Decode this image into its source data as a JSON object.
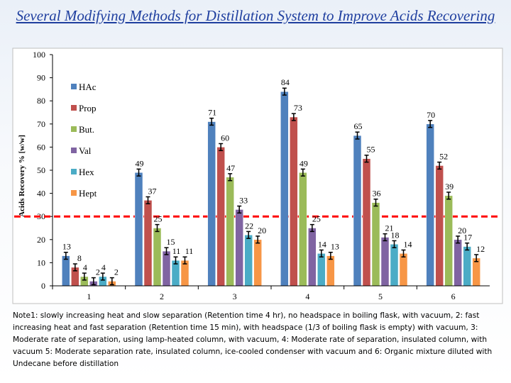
{
  "title": "Several Modifying Methods for Distillation System to Improve Acids Recovering",
  "note": "Note1: slowly increasing heat and slow separation (Retention time 4 hr), no headspace in boiling flask, with vacuum, 2: fast increasing heat and fast separation (Retention time 15 min), with headspace (1/3 of boiling flask is empty) with vacuum, 3: Moderate rate of separation, using lamp-heated column, with vacuum, 4: Moderate rate of separation, insulated column, with vacuum 5: Moderate separation rate, insulated column, ice-cooled condenser with vacuum and 6: Organic mixture diluted with Undecane before distillation",
  "chart_data": {
    "type": "bar",
    "title": "",
    "xlabel": "",
    "ylabel": "Acids Recovery % [w/w]",
    "ylim": [
      0,
      100
    ],
    "yticks": [
      0,
      10,
      20,
      30,
      40,
      50,
      60,
      70,
      80,
      90,
      100
    ],
    "categories": [
      "1",
      "2",
      "3",
      "4",
      "5",
      "6"
    ],
    "reference_line": {
      "y": 30,
      "color": "#ff0000",
      "style": "dashed"
    },
    "legend_position": "left",
    "error_bars": true,
    "series": [
      {
        "name": "HAc",
        "color": "#4f81bd",
        "values": [
          13,
          49,
          71,
          84,
          65,
          70
        ],
        "labels": [
          "13",
          "49",
          "71",
          "84",
          "65",
          "70"
        ]
      },
      {
        "name": "Prop",
        "color": "#c0504d",
        "values": [
          8,
          37,
          60,
          73,
          55,
          52
        ],
        "labels": [
          "8",
          "37",
          "60",
          "73",
          "55",
          "52"
        ]
      },
      {
        "name": "But.",
        "color": "#9bbb59",
        "values": [
          4,
          25,
          47,
          49,
          36,
          39
        ],
        "labels": [
          "4",
          "25",
          "47",
          "49",
          "36",
          "39"
        ]
      },
      {
        "name": "Val",
        "color": "#8064a2",
        "values": [
          2,
          15,
          33,
          25,
          21,
          20
        ],
        "labels": [
          "2",
          "15",
          "33",
          "25",
          "21",
          "20"
        ]
      },
      {
        "name": "Hex",
        "color": "#4bacc6",
        "values": [
          4,
          11,
          22,
          14,
          18,
          17
        ],
        "labels": [
          "4",
          "11",
          "22",
          "14",
          "18",
          "17"
        ]
      },
      {
        "name": "Hept",
        "color": "#f79646",
        "values": [
          2,
          11,
          20,
          13,
          14,
          12
        ],
        "labels": [
          "2",
          "11",
          "20",
          "13",
          "14",
          "12"
        ]
      }
    ]
  }
}
